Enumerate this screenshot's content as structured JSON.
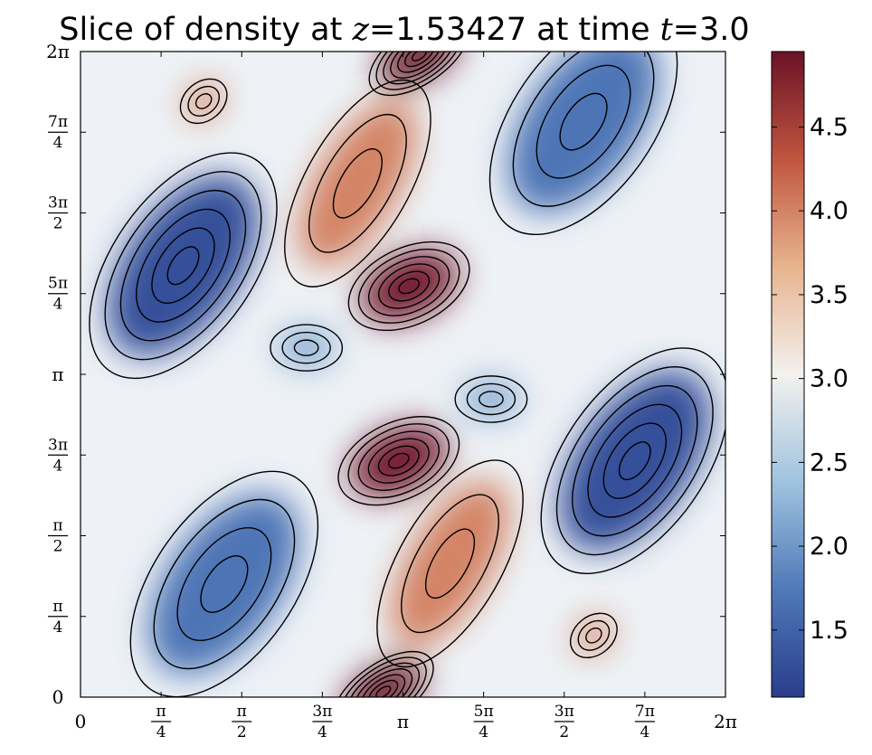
{
  "chart_data": {
    "type": "heatmap",
    "title": {
      "prefix": "Slice of density at ",
      "var_z": "z",
      "eq_z": "=",
      "z_value": "1.53427",
      "middle": " at time ",
      "var_t": "t",
      "eq_t": "=",
      "t_value": "3.0"
    },
    "xlabel": "",
    "ylabel": "",
    "xlim": [
      0,
      6.283185
    ],
    "ylim": [
      0,
      6.283185
    ],
    "x_ticks": [
      {
        "value": 0,
        "num": "0"
      },
      {
        "value": 0.785398,
        "num": "π",
        "den": "4"
      },
      {
        "value": 1.570796,
        "num": "π",
        "den": "2"
      },
      {
        "value": 2.356194,
        "num": "3π",
        "den": "4"
      },
      {
        "value": 3.141593,
        "num": "π"
      },
      {
        "value": 3.926991,
        "num": "5π",
        "den": "4"
      },
      {
        "value": 4.712389,
        "num": "3π",
        "den": "2"
      },
      {
        "value": 5.497787,
        "num": "7π",
        "den": "4"
      },
      {
        "value": 6.283185,
        "num": "2π"
      }
    ],
    "y_ticks": [
      {
        "value": 0,
        "num": "0"
      },
      {
        "value": 0.785398,
        "num": "π",
        "den": "4"
      },
      {
        "value": 1.570796,
        "num": "π",
        "den": "2"
      },
      {
        "value": 2.356194,
        "num": "3π",
        "den": "4"
      },
      {
        "value": 3.141593,
        "num": "π"
      },
      {
        "value": 3.926991,
        "num": "5π",
        "den": "4"
      },
      {
        "value": 4.712389,
        "num": "3π",
        "den": "2"
      },
      {
        "value": 5.497787,
        "num": "7π",
        "den": "4"
      },
      {
        "value": 6.283185,
        "num": "2π"
      }
    ],
    "colorbar": {
      "min": 1.1,
      "max": 4.95,
      "ticks": [
        {
          "value": 1.5,
          "label": "1.5"
        },
        {
          "value": 2.0,
          "label": "2.0"
        },
        {
          "value": 2.5,
          "label": "2.5"
        },
        {
          "value": 3.0,
          "label": "3.0"
        },
        {
          "value": 3.5,
          "label": "3.5"
        },
        {
          "value": 4.0,
          "label": "4.0"
        },
        {
          "value": 4.5,
          "label": "4.5"
        }
      ],
      "colormap": [
        "#2a3d8c",
        "#4f79b8",
        "#9fc3e0",
        "#f3f1ee",
        "#e7b48f",
        "#c0553f",
        "#6a1227"
      ]
    },
    "features": [
      {
        "kind": "vortex-peak",
        "x": 3.2,
        "y": 4.0,
        "value": 4.9
      },
      {
        "kind": "vortex-peak",
        "x": 3.1,
        "y": 2.3,
        "value": 4.9
      },
      {
        "kind": "peak",
        "x": 3.3,
        "y": 6.25,
        "value": 4.95
      },
      {
        "kind": "peak",
        "x": 2.95,
        "y": 0.05,
        "value": 4.95
      },
      {
        "kind": "ridge",
        "x": 2.7,
        "y": 5.0,
        "value": 4.0
      },
      {
        "kind": "ridge",
        "x": 3.6,
        "y": 1.3,
        "value": 4.0
      },
      {
        "kind": "small-peak",
        "x": 1.2,
        "y": 5.8,
        "value": 4.0
      },
      {
        "kind": "small-peak",
        "x": 5.0,
        "y": 0.6,
        "value": 4.0
      },
      {
        "kind": "trough",
        "x": 1.0,
        "y": 4.2,
        "value": 1.3
      },
      {
        "kind": "trough",
        "x": 5.4,
        "y": 2.3,
        "value": 1.3
      },
      {
        "kind": "trough",
        "x": 4.9,
        "y": 5.6,
        "value": 1.7
      },
      {
        "kind": "trough",
        "x": 1.4,
        "y": 1.1,
        "value": 1.7
      },
      {
        "kind": "small-trough",
        "x": 2.2,
        "y": 3.4,
        "value": 2.1
      },
      {
        "kind": "small-trough",
        "x": 4.0,
        "y": 2.9,
        "value": 2.1
      }
    ]
  }
}
